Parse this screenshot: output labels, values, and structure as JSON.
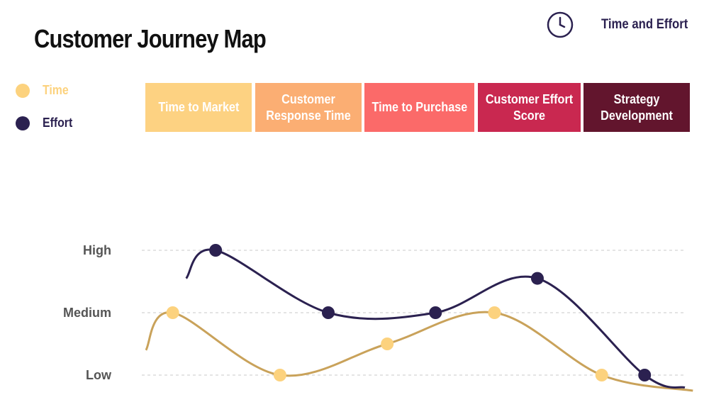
{
  "header": {
    "title": "Customer Journey Map",
    "corner_label": "Time and Effort",
    "corner_icon": "clock-icon"
  },
  "legend": [
    {
      "label": "Time",
      "color": "#fcd27e"
    },
    {
      "label": "Effort",
      "color": "#2b2150"
    }
  ],
  "stages": [
    {
      "label": "Time to Market",
      "color": "#fdd282"
    },
    {
      "label": "Customer Response Time",
      "color": "#fbae73"
    },
    {
      "label": "Time to Purchase",
      "color": "#fb6a69"
    },
    {
      "label": "Customer Effort Score",
      "color": "#c92850"
    },
    {
      "label": "Strategy Development",
      "color": "#62152d"
    }
  ],
  "chart_data": {
    "type": "line",
    "title": "",
    "xlabel": "",
    "ylabel": "",
    "y_categories": [
      "Low",
      "Medium",
      "High"
    ],
    "ylim": [
      0,
      2
    ],
    "grid": true,
    "series": [
      {
        "name": "Time",
        "color": "#fcd27e",
        "line_color": "#c9a25a",
        "points": [
          {
            "x": 1,
            "y": 1.0
          },
          {
            "x": 3,
            "y": 0.0
          },
          {
            "x": 5,
            "y": 0.5
          },
          {
            "x": 7,
            "y": 1.0
          },
          {
            "x": 9,
            "y": 0.0
          }
        ],
        "start": {
          "x": 0.5,
          "y": 0.4
        },
        "end": {
          "x": 10.7,
          "y": -0.25
        }
      },
      {
        "name": "Effort",
        "color": "#2b2150",
        "line_color": "#2b2150",
        "points": [
          {
            "x": 1.8,
            "y": 2.0
          },
          {
            "x": 3.9,
            "y": 1.0
          },
          {
            "x": 5.9,
            "y": 1.0
          },
          {
            "x": 7.8,
            "y": 1.55
          },
          {
            "x": 9.8,
            "y": 0.0
          }
        ],
        "start": {
          "x": 1.25,
          "y": 1.55
        },
        "end": {
          "x": 10.55,
          "y": -0.2
        }
      }
    ]
  }
}
